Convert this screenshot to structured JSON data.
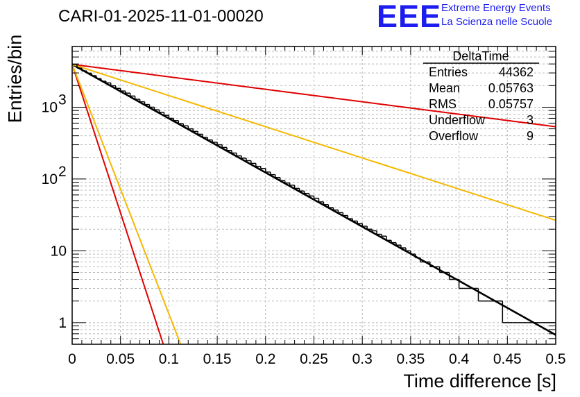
{
  "header": {
    "title": "CARI-01-2025-11-01-00020",
    "logo_text": "EEE",
    "logo_line1": "Extreme Energy Events",
    "logo_line2": "La Scienza nelle Scuole"
  },
  "chart_data": {
    "type": "histogram",
    "title": "CARI-01-2025-11-01-00020",
    "xlabel": "Time difference [s]",
    "ylabel": "Entries/bin",
    "xlim": [
      0,
      0.5
    ],
    "ylim": [
      0.5,
      7000
    ],
    "yscale": "log",
    "grid": true,
    "x_ticks": [
      "0",
      "0.05",
      "0.1",
      "0.15",
      "0.2",
      "0.25",
      "0.3",
      "0.35",
      "0.4",
      "0.45",
      "0.5"
    ],
    "y_ticks": [
      {
        "value": 1,
        "label": "1"
      },
      {
        "value": 10,
        "label": "10"
      },
      {
        "value": 100,
        "base": "10",
        "exp": "2"
      },
      {
        "value": 1000,
        "base": "10",
        "exp": "3"
      }
    ],
    "bin_width": 0.005,
    "histogram": [
      3950,
      3500,
      3200,
      2980,
      2750,
      2500,
      2300,
      2180,
      1990,
      1830,
      1680,
      1570,
      1430,
      1290,
      1190,
      1090,
      1000,
      920,
      850,
      770,
      700,
      650,
      590,
      550,
      500,
      460,
      420,
      380,
      350,
      325,
      300,
      275,
      250,
      230,
      210,
      195,
      180,
      165,
      150,
      140,
      125,
      115,
      105,
      95,
      88,
      82,
      74,
      68,
      63,
      58,
      54,
      48,
      44,
      40,
      37,
      34,
      31,
      28,
      26,
      24,
      22,
      20,
      19,
      17,
      16,
      14,
      13,
      12,
      11,
      10,
      9,
      8,
      7,
      7,
      6,
      6,
      5,
      5,
      4,
      4,
      3,
      3,
      3,
      3,
      2,
      2,
      2,
      2,
      2,
      1,
      1,
      1,
      1,
      1,
      1,
      1,
      1,
      1,
      1,
      1
    ],
    "series": [
      {
        "name": "fit",
        "color": "#000000",
        "y0": 3950,
        "tau": 0.05763
      },
      {
        "name": "upper-red",
        "color": "#e00000",
        "y0": 3950,
        "tau": 0.25
      },
      {
        "name": "upper-orange",
        "color": "#f5b800",
        "y0": 3950,
        "tau": 0.1
      },
      {
        "name": "lower-red",
        "color": "#e00000",
        "y0": 3950,
        "tau": 0.0105
      },
      {
        "name": "lower-orange",
        "color": "#f5b800",
        "y0": 3950,
        "tau": 0.0125
      }
    ],
    "stats": {
      "name": "DeltaTime",
      "rows": [
        {
          "label": "Entries",
          "value": "44362"
        },
        {
          "label": "Mean",
          "value": "0.05763"
        },
        {
          "label": "RMS",
          "value": "0.05757"
        },
        {
          "label": "Underflow",
          "value": "3"
        },
        {
          "label": "Overflow",
          "value": "9"
        }
      ]
    }
  }
}
